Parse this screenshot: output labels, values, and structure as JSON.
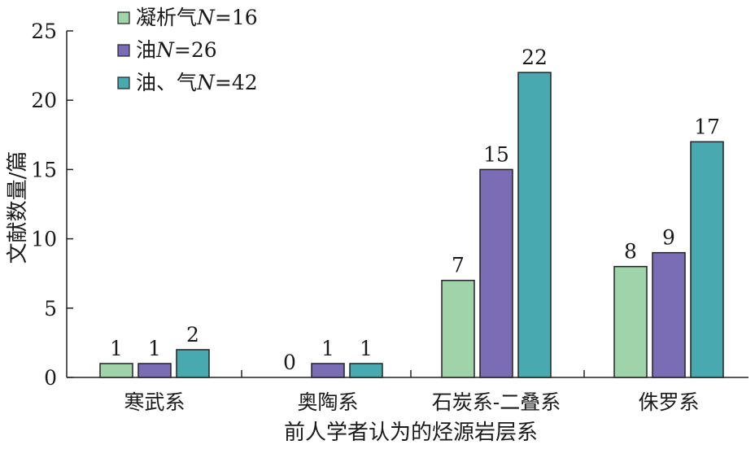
{
  "chart_data": {
    "type": "bar",
    "categories": [
      "寒武系",
      "奥陶系",
      "石炭系-二叠系",
      "侏罗系"
    ],
    "series": [
      {
        "name_prefix": "凝析气",
        "n_label": "N",
        "name_suffix": "=16",
        "color": "#9fd3a9",
        "values": [
          1,
          0,
          7,
          8
        ]
      },
      {
        "name_prefix": "油",
        "n_label": "N",
        "name_suffix": "=26",
        "color": "#7b6cb6",
        "values": [
          1,
          1,
          15,
          9
        ]
      },
      {
        "name_prefix": "油、气",
        "n_label": "N",
        "name_suffix": "=42",
        "color": "#48a9b0",
        "values": [
          2,
          1,
          22,
          17
        ]
      }
    ],
    "xlabel": "前人学者认为的烃源岩层系",
    "ylabel": "文献数量/篇",
    "ylim": [
      0,
      25
    ],
    "yticks": [
      0,
      5,
      10,
      15,
      20,
      25
    ],
    "legend_position": "top-left",
    "grid": false
  }
}
